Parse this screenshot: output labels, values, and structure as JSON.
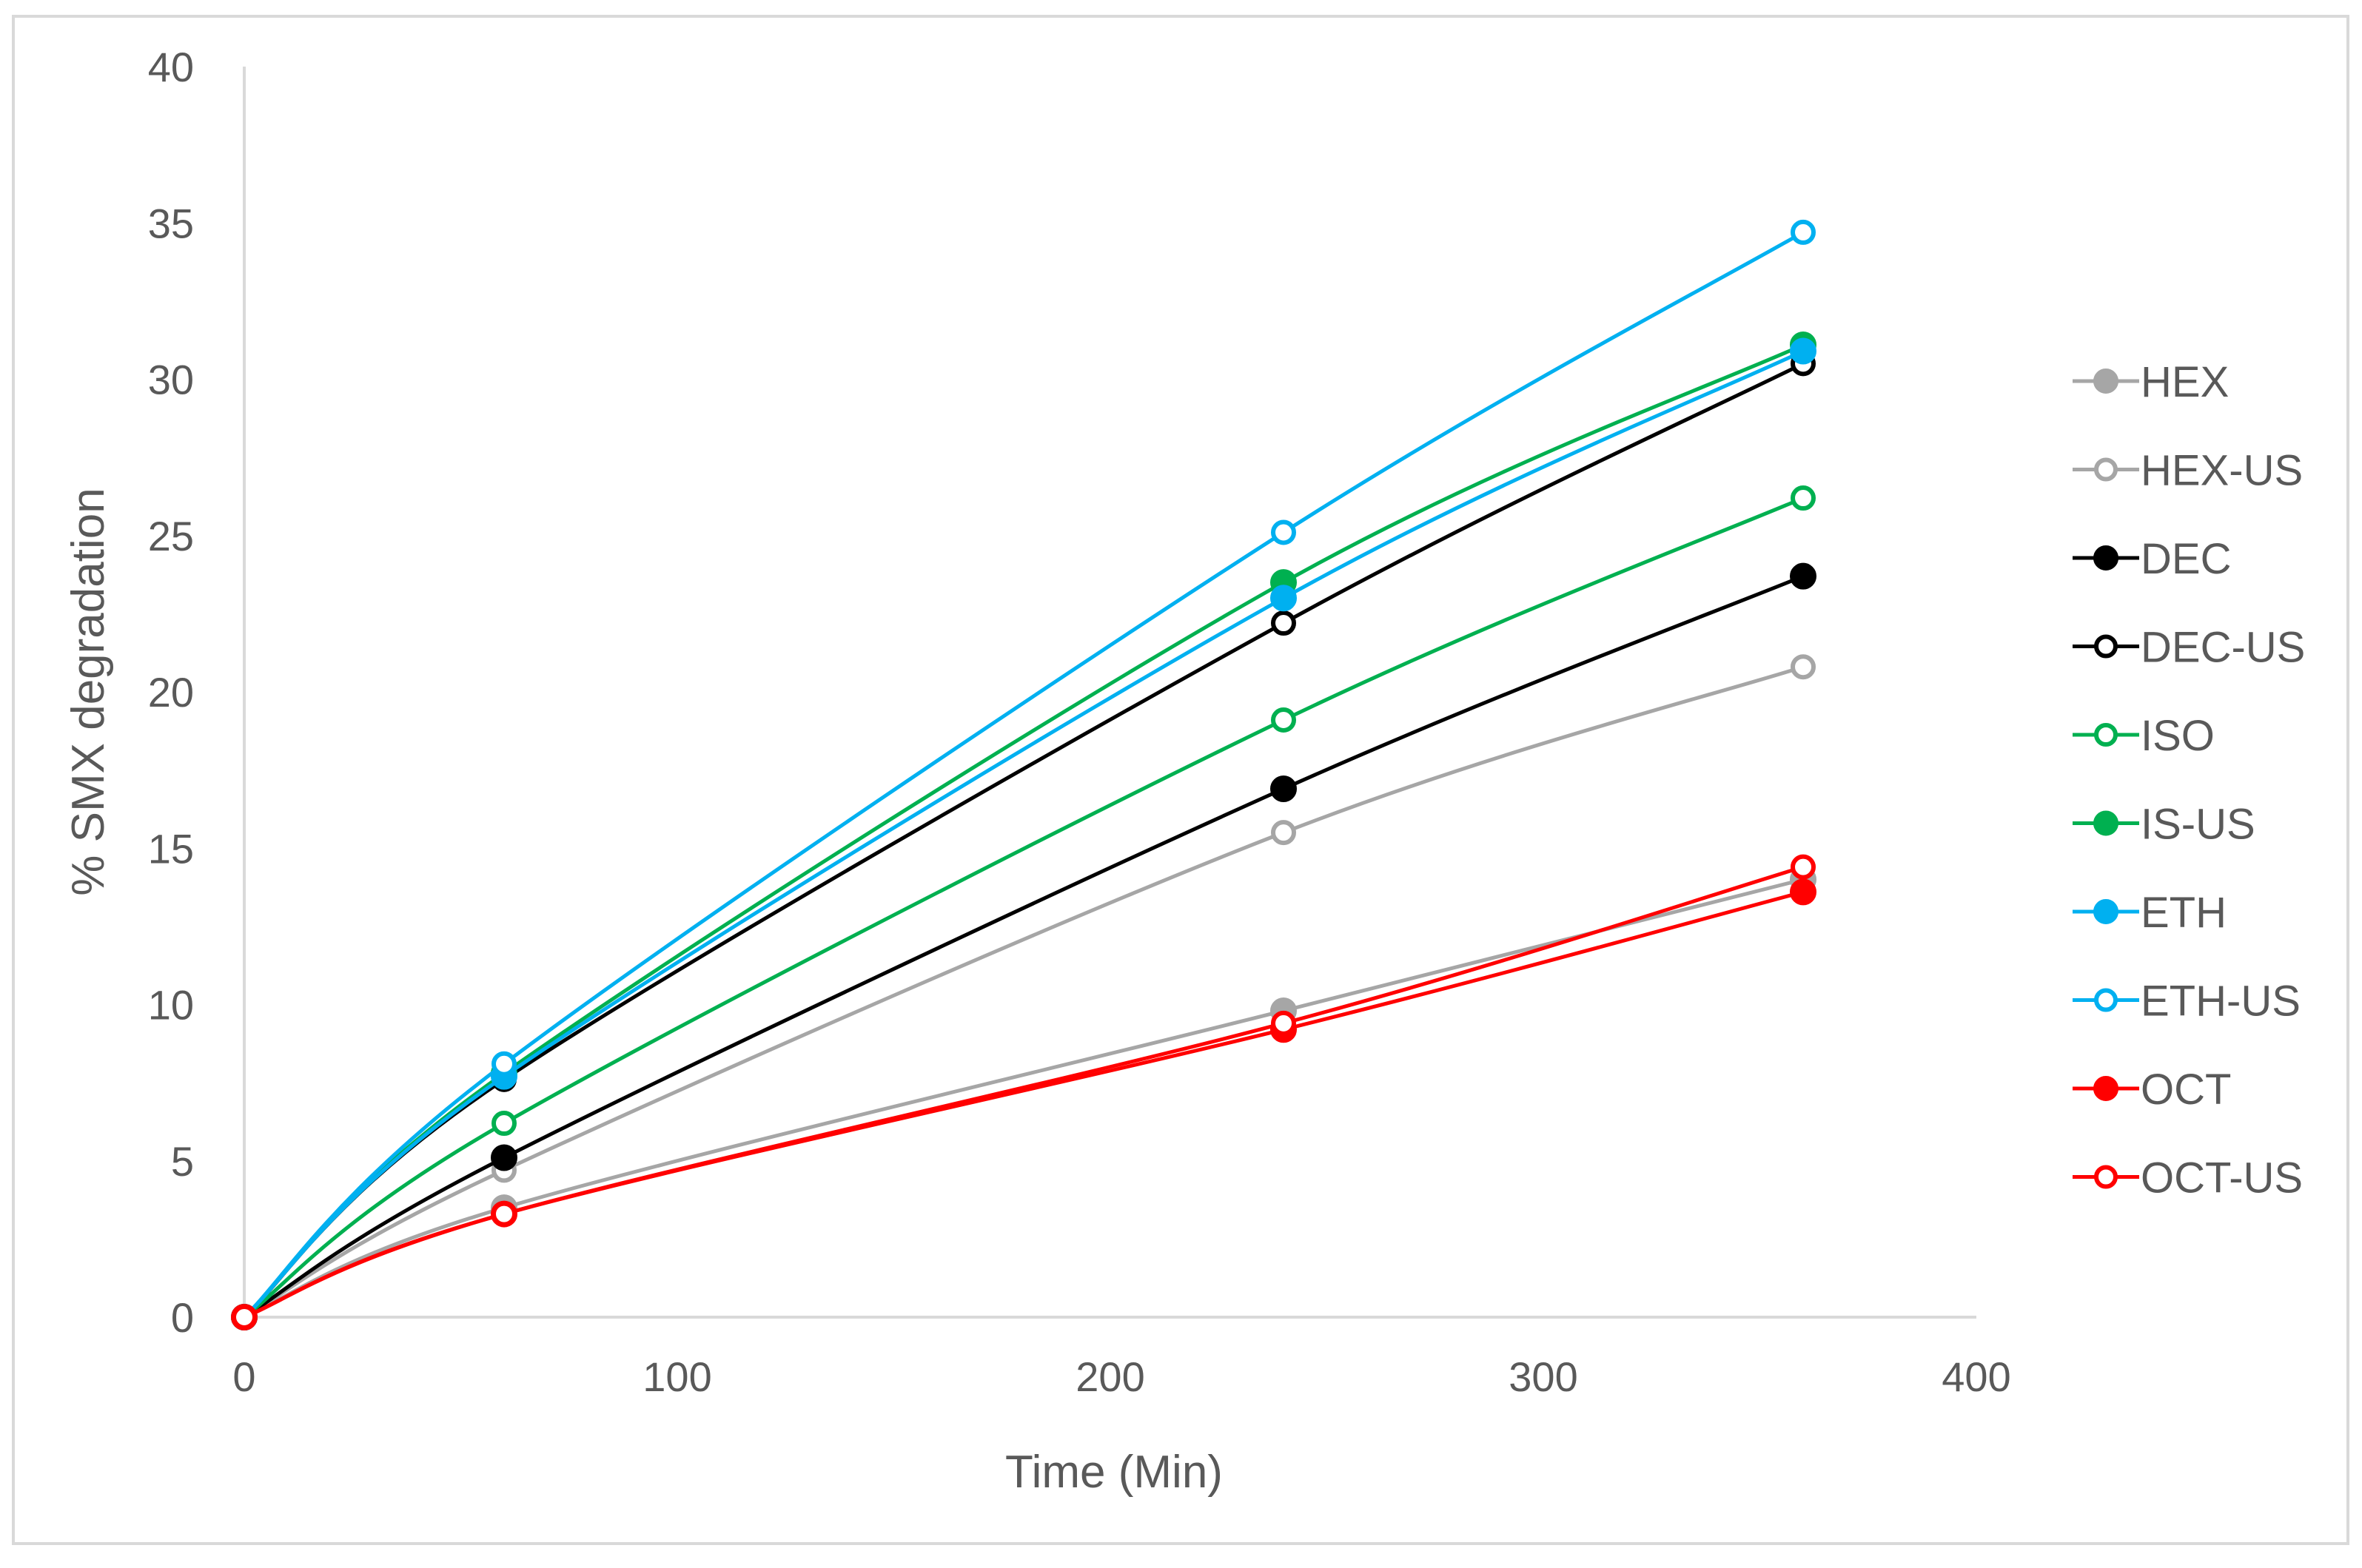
{
  "chart_data": {
    "type": "line",
    "title": "",
    "xlabel": "Time (Min)",
    "ylabel": "% SMX degradation",
    "xlim": [
      0,
      400
    ],
    "ylim": [
      0,
      40
    ],
    "xticks": [
      0,
      100,
      200,
      300,
      400
    ],
    "yticks": [
      0,
      5,
      10,
      15,
      20,
      25,
      30,
      35,
      40
    ],
    "grid": false,
    "legend_position": "right",
    "smooth": true,
    "series": [
      {
        "name": "HEX",
        "color": "#a6a6a6",
        "marker": "filled",
        "x": [
          0,
          60,
          240,
          360
        ],
        "y": [
          0,
          3.5,
          9.8,
          14.0
        ]
      },
      {
        "name": "HEX-US",
        "color": "#a6a6a6",
        "marker": "open",
        "x": [
          0,
          60,
          240,
          360
        ],
        "y": [
          0,
          4.7,
          15.5,
          20.8
        ]
      },
      {
        "name": "DEC",
        "color": "#000000",
        "marker": "filled",
        "x": [
          0,
          60,
          240,
          360
        ],
        "y": [
          0,
          5.1,
          16.9,
          23.7
        ]
      },
      {
        "name": "DEC-US",
        "color": "#000000",
        "marker": "open",
        "x": [
          0,
          60,
          240,
          360
        ],
        "y": [
          0,
          7.6,
          22.2,
          30.5
        ]
      },
      {
        "name": "ISO",
        "color": "#00b050",
        "marker": "open",
        "x": [
          0,
          60,
          240,
          360
        ],
        "y": [
          0,
          6.2,
          19.1,
          26.2
        ]
      },
      {
        "name": "IS-US",
        "color": "#00b050",
        "marker": "filled",
        "x": [
          0,
          60,
          240,
          360
        ],
        "y": [
          0,
          7.8,
          23.5,
          31.1
        ]
      },
      {
        "name": "ETH",
        "color": "#00b0f0",
        "marker": "filled",
        "x": [
          0,
          60,
          240,
          360
        ],
        "y": [
          0,
          7.7,
          23.0,
          30.9
        ]
      },
      {
        "name": "ETH-US",
        "color": "#00b0f0",
        "marker": "open",
        "x": [
          0,
          60,
          240,
          360
        ],
        "y": [
          0,
          8.1,
          25.1,
          34.7
        ]
      },
      {
        "name": "OCT",
        "color": "#ff0000",
        "marker": "filled",
        "x": [
          0,
          60,
          240,
          360
        ],
        "y": [
          0,
          3.3,
          9.2,
          13.6
        ]
      },
      {
        "name": "OCT-US",
        "color": "#ff0000",
        "marker": "open",
        "x": [
          0,
          60,
          240,
          360
        ],
        "y": [
          0,
          3.3,
          9.4,
          14.4
        ]
      }
    ]
  }
}
